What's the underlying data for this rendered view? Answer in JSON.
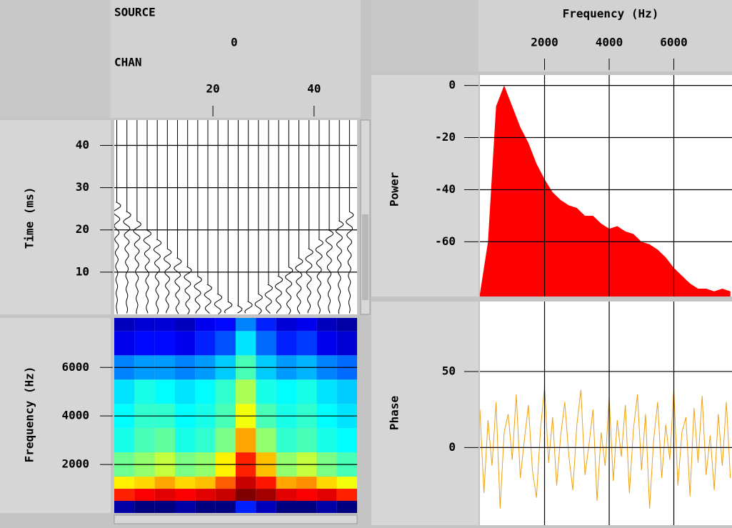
{
  "header": {
    "source_label": "SOURCE",
    "source_value": "0",
    "chan_label": "CHAN"
  },
  "chart_data": [
    {
      "type": "wiggle",
      "y_label": "Time (ms)",
      "x": [
        1,
        3,
        5,
        7,
        9,
        11,
        13,
        15,
        17,
        19,
        21,
        23,
        25,
        27,
        29,
        31,
        33,
        35,
        37,
        39,
        41,
        43,
        45,
        47
      ],
      "values": [
        26.5,
        24.3,
        22.1,
        19.9,
        17.7,
        15.5,
        13.3,
        11.2,
        9.0,
        7.0,
        4.8,
        3.0,
        2.0,
        3.0,
        4.8,
        7.0,
        9.0,
        11.2,
        13.3,
        15.5,
        17.7,
        19.9,
        22.1,
        24.3
      ],
      "xlim": [
        0.5,
        48.5
      ],
      "xticks": [
        20,
        40
      ],
      "ylim": [
        0,
        46
      ],
      "yticks": [
        10,
        20,
        30,
        40
      ],
      "grid": true,
      "color": "#000000"
    },
    {
      "type": "heatmap",
      "y_label": "Frequency (Hz)",
      "x_bins": [
        0.5,
        4.5,
        8.5,
        12.5,
        16.5,
        20.5,
        24.5,
        28.5,
        32.5,
        36.5,
        40.5,
        44.5,
        48.5
      ],
      "y_bins": [
        0,
        500,
        1000,
        1500,
        2500,
        3500,
        4500,
        5500,
        6500,
        7500,
        8040
      ],
      "z": [
        [
          18,
          15,
          15,
          18,
          15,
          15,
          28,
          20,
          15,
          15,
          18,
          15
        ],
        [
          85,
          88,
          90,
          88,
          90,
          92,
          98,
          95,
          90,
          88,
          90,
          85
        ],
        [
          68,
          70,
          74,
          70,
          72,
          80,
          92,
          86,
          74,
          76,
          70,
          66
        ],
        [
          55,
          58,
          62,
          56,
          58,
          68,
          85,
          72,
          58,
          62,
          56,
          52
        ],
        [
          48,
          52,
          54,
          48,
          50,
          56,
          74,
          58,
          50,
          52,
          48,
          46
        ],
        [
          46,
          50,
          50,
          46,
          48,
          52,
          66,
          52,
          48,
          50,
          46,
          44
        ],
        [
          44,
          48,
          46,
          44,
          46,
          50,
          60,
          48,
          46,
          48,
          44,
          42
        ],
        [
          36,
          38,
          38,
          36,
          38,
          42,
          52,
          42,
          38,
          40,
          36,
          34
        ],
        [
          24,
          26,
          26,
          24,
          28,
          32,
          44,
          34,
          28,
          30,
          24,
          22
        ],
        [
          20,
          22,
          22,
          20,
          24,
          26,
          36,
          28,
          22,
          24,
          20,
          18
        ]
      ],
      "xlim": [
        0.5,
        48.5
      ],
      "ylim": [
        0,
        8040
      ],
      "yticks": [
        2000,
        4000,
        6000
      ],
      "grid": true
    },
    {
      "type": "area",
      "x_label": "Frequency (Hz)",
      "y_label": "Power",
      "color": "#ff0000",
      "x": [
        0,
        250,
        500,
        750,
        1000,
        1250,
        1500,
        1750,
        2000,
        2250,
        2500,
        2750,
        3000,
        3250,
        3500,
        3750,
        4000,
        4250,
        4500,
        4750,
        5000,
        5250,
        5500,
        5750,
        6000,
        6250,
        6500,
        6750,
        7000,
        7250,
        7500,
        7750
      ],
      "values": [
        -80,
        -60,
        -8,
        0,
        -8,
        -16,
        -22,
        -30,
        -36,
        -41,
        -44,
        -46,
        -47,
        -50,
        -50,
        -53,
        -55,
        -54,
        -56,
        -57,
        -60,
        -61,
        -63,
        -66,
        -70,
        -73,
        -76,
        -78,
        -78,
        -79,
        -78,
        -79
      ],
      "xlim": [
        0,
        7800
      ],
      "xticks": [
        2000,
        4000,
        6000
      ],
      "ylim": [
        -81,
        4
      ],
      "yticks": [
        0,
        -20,
        -40,
        -60
      ],
      "grid": true
    },
    {
      "type": "line",
      "y_label": "Phase",
      "color": "#f0a010",
      "x": [
        0,
        125,
        250,
        375,
        500,
        625,
        750,
        875,
        1000,
        1125,
        1250,
        1375,
        1500,
        1625,
        1750,
        1875,
        2000,
        2125,
        2250,
        2375,
        2500,
        2625,
        2750,
        2875,
        3000,
        3125,
        3250,
        3375,
        3500,
        3625,
        3750,
        3875,
        4000,
        4125,
        4250,
        4375,
        4500,
        4625,
        4750,
        4875,
        5000,
        5125,
        5250,
        5375,
        5500,
        5625,
        5750,
        5875,
        6000,
        6125,
        6250,
        6375,
        6500,
        6625,
        6750,
        6875,
        7000,
        7125,
        7250,
        7375,
        7500,
        7625,
        7750
      ],
      "values": [
        25,
        -30,
        18,
        -12,
        30,
        -40,
        10,
        22,
        -8,
        35,
        -20,
        5,
        28,
        -15,
        -33,
        12,
        40,
        -10,
        20,
        -25,
        8,
        30,
        -5,
        -28,
        15,
        38,
        -18,
        2,
        25,
        -35,
        10,
        -12,
        33,
        -22,
        18,
        -6,
        28,
        -30,
        12,
        35,
        -15,
        22,
        -40,
        5,
        30,
        -20,
        15,
        -8,
        38,
        -25,
        10,
        20,
        -32,
        26,
        -10,
        34,
        -18,
        8,
        -28,
        22,
        -12,
        30,
        -20
      ],
      "xlim": [
        0,
        7800
      ],
      "ylim": [
        -51,
        96
      ],
      "yticks": [
        0,
        50
      ],
      "grid": true
    }
  ]
}
